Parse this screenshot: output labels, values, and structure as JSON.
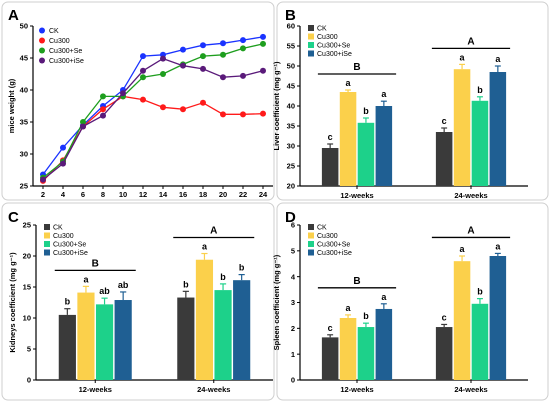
{
  "colors": {
    "CK": "#3a3a3a",
    "Cu300": "#fbd04b",
    "Cu300+Se": "#1dd18a",
    "Cu300+iSe": "#1f5f93",
    "line_CK": "#1a33ff",
    "line_Cu300": "#ff1a1a",
    "line_Cu300+Se": "#1e9e1e",
    "line_Cu300+iSe": "#5a1a7a"
  },
  "chart_data": [
    {
      "panel": "A",
      "type": "line",
      "xlabel": "",
      "ylabel": "mice weight (g)",
      "x": [
        2,
        4,
        6,
        8,
        10,
        12,
        14,
        16,
        18,
        20,
        22,
        24
      ],
      "xticks": [
        "2",
        "4",
        "6",
        "8",
        "10",
        "12",
        "14",
        "16",
        "18",
        "20",
        "22",
        "24"
      ],
      "xlim": [
        1,
        25
      ],
      "ylim": [
        25,
        50
      ],
      "yticks": [
        "25",
        "30",
        "35",
        "40",
        "45",
        "50"
      ],
      "legend_position": "top-left",
      "series": [
        {
          "name": "CK",
          "values": [
            26.8,
            31,
            34.5,
            37.5,
            40,
            45.3,
            45.5,
            46.3,
            47,
            47.3,
            47.8,
            48.3
          ]
        },
        {
          "name": "Cu300",
          "values": [
            25.8,
            29,
            34.3,
            37,
            39,
            38.5,
            37.3,
            37,
            38,
            36.2,
            36.2,
            36.3
          ]
        },
        {
          "name": "Cu300+Se",
          "values": [
            26.3,
            28.8,
            35,
            39,
            39,
            42,
            42.5,
            44,
            45.3,
            45.5,
            46.5,
            47.2
          ]
        },
        {
          "name": "Cu300+iSe",
          "values": [
            26,
            28.5,
            34.3,
            36,
            39.5,
            43,
            44.9,
            43.8,
            43.3,
            42,
            42.2,
            43
          ]
        }
      ]
    },
    {
      "panel": "B",
      "type": "bar",
      "ylabel": "Liver coefficient (mg g⁻¹)",
      "categories": [
        "12-weeks",
        "24-weeks"
      ],
      "ylim": [
        20,
        60
      ],
      "yticks": [
        "20",
        "25",
        "30",
        "35",
        "40",
        "45",
        "50",
        "55",
        "60"
      ],
      "legend_position": "top-left",
      "series": [
        {
          "name": "CK",
          "values": [
            29.5,
            33.5
          ],
          "errors": [
            1.0,
            1.0
          ],
          "letters": [
            "c",
            "c"
          ]
        },
        {
          "name": "Cu300",
          "values": [
            43.5,
            49.2
          ],
          "errors": [
            0.5,
            1.2
          ],
          "letters": [
            "a",
            "a"
          ]
        },
        {
          "name": "Cu300+Se",
          "values": [
            35.8,
            41.3
          ],
          "errors": [
            1.2,
            1.0
          ],
          "letters": [
            "b",
            "b"
          ]
        },
        {
          "name": "Cu300+iSe",
          "values": [
            40.0,
            48.5
          ],
          "errors": [
            1.2,
            1.5
          ],
          "letters": [
            "a",
            "a"
          ]
        }
      ],
      "group_letters": [
        "B",
        "A"
      ]
    },
    {
      "panel": "C",
      "type": "bar",
      "ylabel": "Kidneys coefficient (mg g⁻¹)",
      "categories": [
        "12-weeks",
        "24-weeks"
      ],
      "ylim": [
        0,
        25
      ],
      "yticks": [
        "0",
        "5",
        "10",
        "15",
        "20",
        "25"
      ],
      "legend_position": "top-left",
      "series": [
        {
          "name": "CK",
          "values": [
            10.5,
            13.3
          ],
          "errors": [
            1.0,
            1.0
          ],
          "letters": [
            "b",
            "b"
          ]
        },
        {
          "name": "Cu300",
          "values": [
            14.1,
            19.4
          ],
          "errors": [
            1.0,
            1.0
          ],
          "letters": [
            "a",
            "a"
          ]
        },
        {
          "name": "Cu300+Se",
          "values": [
            12.2,
            14.5
          ],
          "errors": [
            1.0,
            1.0
          ],
          "letters": [
            "ab",
            "b"
          ]
        },
        {
          "name": "Cu300+iSe",
          "values": [
            12.9,
            16.1
          ],
          "errors": [
            1.3,
            0.9
          ],
          "letters": [
            "ab",
            "b"
          ]
        }
      ],
      "group_letters": [
        "B",
        "A"
      ]
    },
    {
      "panel": "D",
      "type": "bar",
      "ylabel": "Spleen coefficient (mg g⁻¹)",
      "categories": [
        "12-weeks",
        "24-weeks"
      ],
      "ylim": [
        0,
        6
      ],
      "yticks": [
        "0",
        "1",
        "2",
        "3",
        "4",
        "5",
        "6"
      ],
      "legend_position": "top-left",
      "series": [
        {
          "name": "CK",
          "values": [
            1.65,
            2.05
          ],
          "errors": [
            0.1,
            0.1
          ],
          "letters": [
            "c",
            "c"
          ]
        },
        {
          "name": "Cu300",
          "values": [
            2.4,
            4.6
          ],
          "errors": [
            0.12,
            0.2
          ],
          "letters": [
            "a",
            "a"
          ]
        },
        {
          "name": "Cu300+Se",
          "values": [
            2.05,
            2.95
          ],
          "errors": [
            0.15,
            0.2
          ],
          "letters": [
            "b",
            "b"
          ]
        },
        {
          "name": "Cu300+iSe",
          "values": [
            2.75,
            4.8
          ],
          "errors": [
            0.2,
            0.1
          ],
          "letters": [
            "a",
            "a"
          ]
        }
      ],
      "group_letters": [
        "B",
        "A"
      ]
    }
  ]
}
